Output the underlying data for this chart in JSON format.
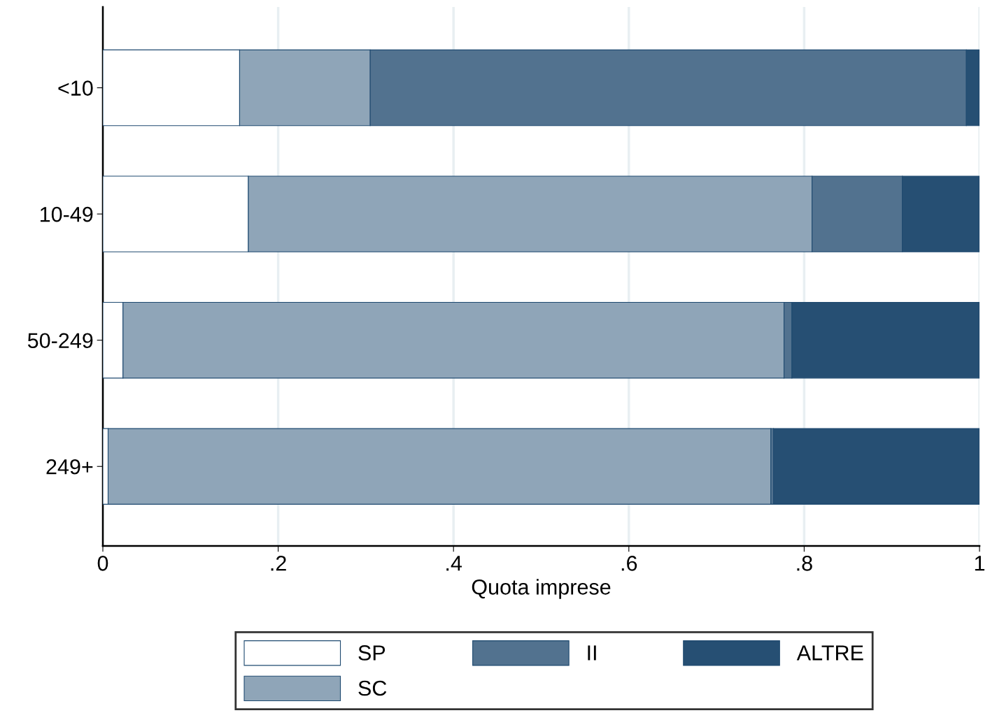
{
  "chart_data": {
    "type": "bar",
    "orientation": "horizontal",
    "stacked": true,
    "xlabel": "Quota imprese",
    "categories": [
      "<10",
      "10-49",
      "50-249",
      "249+"
    ],
    "series": [
      {
        "name": "SP",
        "color": "#ffffff",
        "values": [
          0.156,
          0.166,
          0.023,
          0.006
        ]
      },
      {
        "name": "SC",
        "color": "#8fa5b8",
        "values": [
          0.149,
          0.643,
          0.754,
          0.756
        ]
      },
      {
        "name": "II",
        "color": "#52728f",
        "values": [
          0.68,
          0.103,
          0.009,
          0.003
        ]
      },
      {
        "name": "ALTRE",
        "color": "#264f73",
        "values": [
          0.015,
          0.088,
          0.214,
          0.235
        ]
      }
    ],
    "xlim": [
      0,
      1
    ],
    "xticks": [
      0,
      {
        "value": 0.2,
        "label": ".2"
      },
      {
        "value": 0.4,
        "label": ".4"
      },
      {
        "value": 0.6,
        "label": ".6"
      },
      {
        "value": 0.8,
        "label": ".8"
      },
      1
    ],
    "grid": "x",
    "legend": "bottom"
  }
}
